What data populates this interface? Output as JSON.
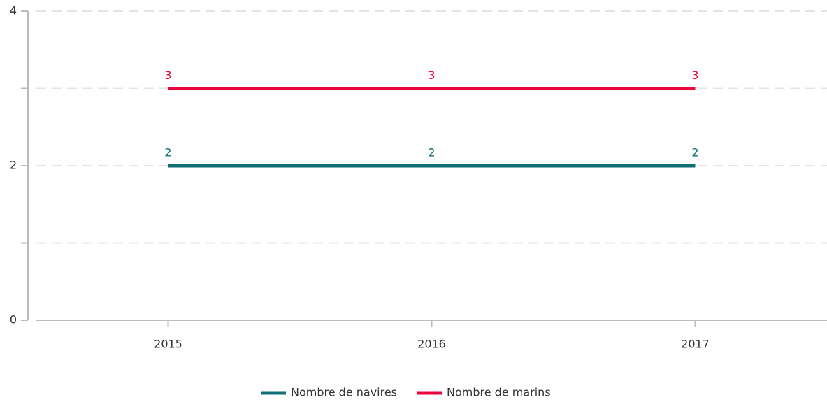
{
  "chart_data": {
    "type": "line",
    "categories": [
      "2015",
      "2016",
      "2017"
    ],
    "series": [
      {
        "name": "Nombre de navires",
        "color": "#0f6f75",
        "values": [
          2,
          2,
          2
        ]
      },
      {
        "name": "Nombre de marins",
        "color": "#e8063c",
        "values": [
          3,
          3,
          3
        ]
      }
    ],
    "ylim": [
      0,
      4
    ],
    "yticks": [
      0,
      2,
      4
    ],
    "minor_yticks": [
      1,
      3
    ],
    "grid": true,
    "legend": "bottom"
  }
}
